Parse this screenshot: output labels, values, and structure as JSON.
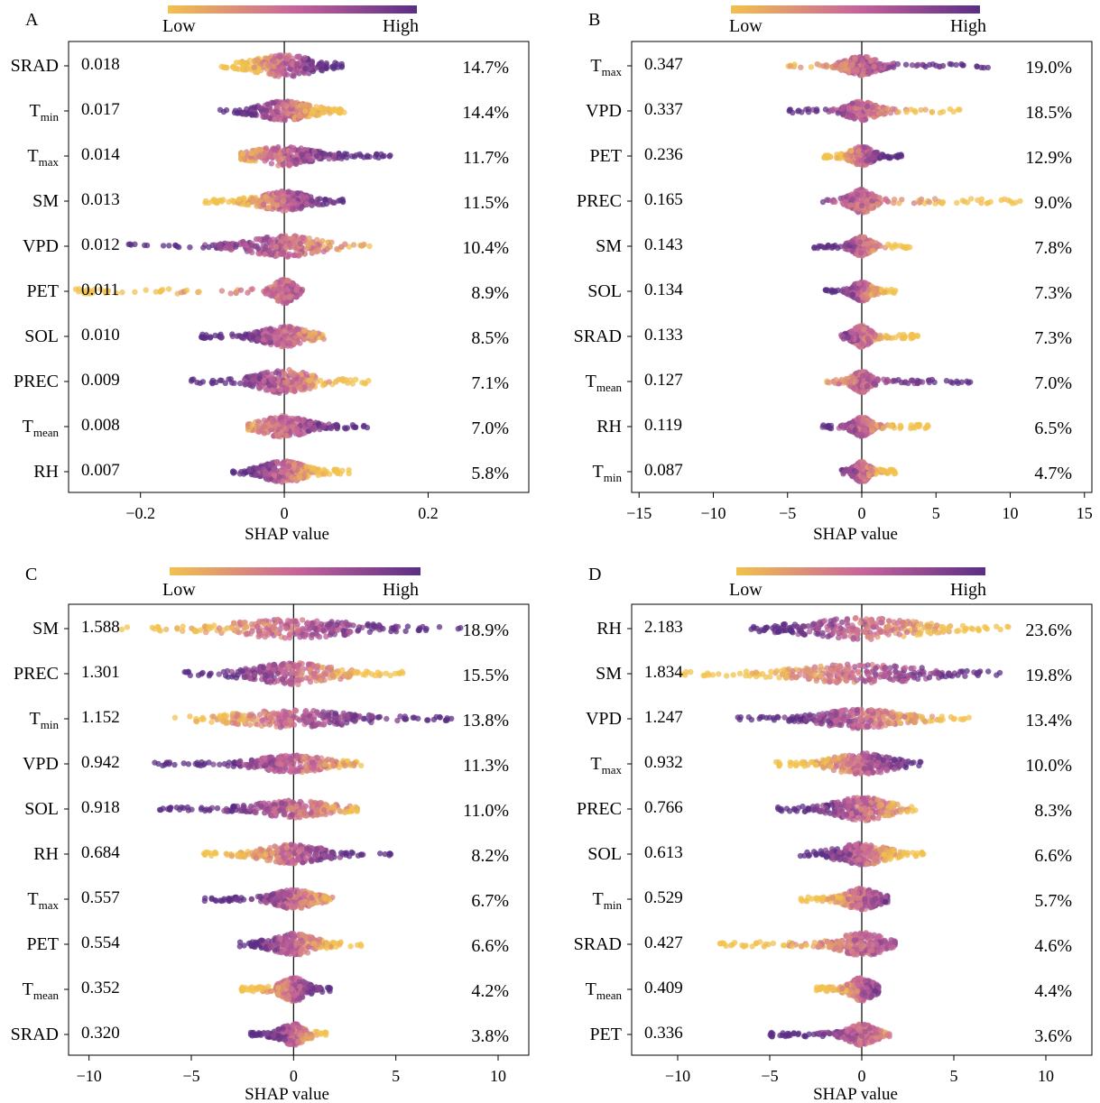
{
  "colors": {
    "low": "#f2c14e",
    "mid": "#c8659a",
    "high": "#5b2e86"
  },
  "chart_data": [
    {
      "panel_label": "A",
      "type": "scatter",
      "colorbar": {
        "low_label": "Low",
        "high_label": "High"
      },
      "xlabel": "SHAP value",
      "xlim": [
        -0.3,
        0.34
      ],
      "xticks": [
        -0.2,
        0,
        0.2
      ],
      "xtick_labels": [
        "−0.2",
        "0",
        "0.2"
      ],
      "features": [
        {
          "name": "SRAD",
          "sub": "",
          "importance": "0.018",
          "percent": "14.7%",
          "range": [
            -0.09,
            0.08
          ],
          "spread": 0.035,
          "width": 1.0,
          "trend": 1
        },
        {
          "name": "T",
          "sub": "min",
          "importance": "0.017",
          "percent": "14.4%",
          "range": [
            -0.09,
            0.085
          ],
          "spread": 0.03,
          "width": 0.9,
          "trend": -1
        },
        {
          "name": "T",
          "sub": "max",
          "importance": "0.014",
          "percent": "11.7%",
          "range": [
            -0.06,
            0.148
          ],
          "spread": 0.035,
          "width": 0.9,
          "trend": 1
        },
        {
          "name": "SM",
          "sub": "",
          "importance": "0.013",
          "percent": "11.5%",
          "range": [
            -0.11,
            0.085
          ],
          "spread": 0.03,
          "width": 0.9,
          "trend": 1
        },
        {
          "name": "VPD",
          "sub": "",
          "importance": "0.012",
          "percent": "10.4%",
          "range": [
            -0.22,
            0.12
          ],
          "spread": 0.04,
          "width": 1.0,
          "trend": -1
        },
        {
          "name": "PET",
          "sub": "",
          "importance": "0.011",
          "percent": "8.9%",
          "range": [
            -0.29,
            0.025
          ],
          "spread": 0.012,
          "width": 1.1,
          "trend": 1
        },
        {
          "name": "SOL",
          "sub": "",
          "importance": "0.010",
          "percent": "8.5%",
          "range": [
            -0.13,
            0.055
          ],
          "spread": 0.025,
          "width": 0.95,
          "trend": -1
        },
        {
          "name": "PREC",
          "sub": "",
          "importance": "0.009",
          "percent": "7.1%",
          "range": [
            -0.13,
            0.12
          ],
          "spread": 0.03,
          "width": 1.1,
          "trend": -1
        },
        {
          "name": "T",
          "sub": "mean",
          "importance": "0.008",
          "percent": "7.0%",
          "range": [
            -0.05,
            0.13
          ],
          "spread": 0.025,
          "width": 1.0,
          "trend": 1
        },
        {
          "name": "RH",
          "sub": "",
          "importance": "0.007",
          "percent": "5.8%",
          "range": [
            -0.075,
            0.09
          ],
          "spread": 0.025,
          "width": 1.0,
          "trend": -1
        }
      ]
    },
    {
      "panel_label": "B",
      "type": "scatter",
      "colorbar": {
        "low_label": "Low",
        "high_label": "High"
      },
      "xlabel": "SHAP value",
      "xlim": [
        -15.5,
        15.5
      ],
      "xticks": [
        -15,
        -10,
        -5,
        0,
        5,
        10,
        15
      ],
      "xtick_labels": [
        "−15",
        "−10",
        "−5",
        "0",
        "5",
        "10",
        "15"
      ],
      "features": [
        {
          "name": "T",
          "sub": "max",
          "importance": "0.347",
          "percent": "19.0%",
          "range": [
            -5.2,
            8.8
          ],
          "spread": 0.9,
          "width": 0.9,
          "trend": 1
        },
        {
          "name": "VPD",
          "sub": "",
          "importance": "0.337",
          "percent": "18.5%",
          "range": [
            -5.0,
            7.0
          ],
          "spread": 0.8,
          "width": 0.9,
          "trend": -1
        },
        {
          "name": "PET",
          "sub": "",
          "importance": "0.236",
          "percent": "12.9%",
          "range": [
            -2.6,
            2.7
          ],
          "spread": 0.6,
          "width": 0.9,
          "trend": 1
        },
        {
          "name": "PREC",
          "sub": "",
          "importance": "0.165",
          "percent": "9.0%",
          "range": [
            -2.8,
            10.8
          ],
          "spread": 0.6,
          "width": 1.1,
          "trend": -1
        },
        {
          "name": "SM",
          "sub": "",
          "importance": "0.143",
          "percent": "7.8%",
          "range": [
            -3.2,
            3.5
          ],
          "spread": 0.5,
          "width": 0.9,
          "trend": -1
        },
        {
          "name": "SOL",
          "sub": "",
          "importance": "0.134",
          "percent": "7.3%",
          "range": [
            -2.6,
            2.5
          ],
          "spread": 0.5,
          "width": 0.9,
          "trend": -1
        },
        {
          "name": "SRAD",
          "sub": "",
          "importance": "0.133",
          "percent": "7.3%",
          "range": [
            -1.4,
            3.8
          ],
          "spread": 0.5,
          "width": 1.0,
          "trend": -1
        },
        {
          "name": "T",
          "sub": "mean",
          "importance": "0.127",
          "percent": "7.0%",
          "range": [
            -2.6,
            7.5
          ],
          "spread": 0.5,
          "width": 1.0,
          "trend": 1
        },
        {
          "name": "RH",
          "sub": "",
          "importance": "0.119",
          "percent": "6.5%",
          "range": [
            -3.0,
            4.6
          ],
          "spread": 0.5,
          "width": 0.9,
          "trend": -1
        },
        {
          "name": "T",
          "sub": "min",
          "importance": "0.087",
          "percent": "4.7%",
          "range": [
            -1.4,
            2.5
          ],
          "spread": 0.4,
          "width": 1.0,
          "trend": -1
        }
      ]
    },
    {
      "panel_label": "C",
      "type": "scatter",
      "colorbar": {
        "low_label": "Low",
        "high_label": "High"
      },
      "xlabel": "SHAP value",
      "xlim": [
        -11,
        11.5
      ],
      "xticks": [
        -10,
        -5,
        0,
        5,
        10
      ],
      "xtick_labels": [
        "−10",
        "−5",
        "0",
        "5",
        "10"
      ],
      "features": [
        {
          "name": "SM",
          "sub": "",
          "importance": "1.588",
          "percent": "18.9%",
          "range": [
            -8.8,
            8.2
          ],
          "spread": 2.5,
          "width": 0.9,
          "trend": 1
        },
        {
          "name": "PREC",
          "sub": "",
          "importance": "1.301",
          "percent": "15.5%",
          "range": [
            -5.8,
            5.8
          ],
          "spread": 1.6,
          "width": 1.0,
          "trend": -1
        },
        {
          "name": "T",
          "sub": "min",
          "importance": "1.152",
          "percent": "13.8%",
          "range": [
            -5.8,
            7.9
          ],
          "spread": 2.5,
          "width": 0.8,
          "trend": 1
        },
        {
          "name": "VPD",
          "sub": "",
          "importance": "0.942",
          "percent": "11.3%",
          "range": [
            -6.8,
            3.3
          ],
          "spread": 1.4,
          "width": 0.8,
          "trend": -1
        },
        {
          "name": "SOL",
          "sub": "",
          "importance": "0.918",
          "percent": "11.0%",
          "range": [
            -6.8,
            3.1
          ],
          "spread": 1.5,
          "width": 0.8,
          "trend": -1
        },
        {
          "name": "RH",
          "sub": "",
          "importance": "0.684",
          "percent": "8.2%",
          "range": [
            -4.4,
            4.8
          ],
          "spread": 1.2,
          "width": 0.9,
          "trend": 1
        },
        {
          "name": "T",
          "sub": "max",
          "importance": "0.557",
          "percent": "6.7%",
          "range": [
            -4.4,
            1.9
          ],
          "spread": 0.8,
          "width": 0.9,
          "trend": -1
        },
        {
          "name": "PET",
          "sub": "",
          "importance": "0.554",
          "percent": "6.6%",
          "range": [
            -2.8,
            3.4
          ],
          "spread": 0.9,
          "width": 1.0,
          "trend": -1
        },
        {
          "name": "T",
          "sub": "mean",
          "importance": "0.352",
          "percent": "4.2%",
          "range": [
            -2.6,
            1.8
          ],
          "spread": 0.5,
          "width": 1.1,
          "trend": 1
        },
        {
          "name": "SRAD",
          "sub": "",
          "importance": "0.320",
          "percent": "3.8%",
          "range": [
            -2.2,
            1.9
          ],
          "spread": 0.5,
          "width": 1.0,
          "trend": -1
        }
      ]
    },
    {
      "panel_label": "D",
      "type": "scatter",
      "colorbar": {
        "low_label": "Low",
        "high_label": "High"
      },
      "xlabel": "SHAP value",
      "xlim": [
        -12.5,
        12.5
      ],
      "xticks": [
        -10,
        -5,
        0,
        5,
        10
      ],
      "xtick_labels": [
        "−10",
        "−5",
        "0",
        "5",
        "10"
      ],
      "features": [
        {
          "name": "RH",
          "sub": "",
          "importance": "2.183",
          "percent": "23.6%",
          "range": [
            -6.0,
            8.2
          ],
          "spread": 2.6,
          "width": 1.0,
          "trend": -1
        },
        {
          "name": "SM",
          "sub": "",
          "importance": "1.834",
          "percent": "19.8%",
          "range": [
            -9.8,
            7.5
          ],
          "spread": 2.8,
          "width": 0.9,
          "trend": 1
        },
        {
          "name": "VPD",
          "sub": "",
          "importance": "1.247",
          "percent": "13.4%",
          "range": [
            -6.8,
            6.0
          ],
          "spread": 1.8,
          "width": 0.9,
          "trend": -1
        },
        {
          "name": "T",
          "sub": "max",
          "importance": "0.932",
          "percent": "10.0%",
          "range": [
            -4.8,
            3.2
          ],
          "spread": 1.3,
          "width": 1.0,
          "trend": 1
        },
        {
          "name": "PREC",
          "sub": "",
          "importance": "0.766",
          "percent": "8.3%",
          "range": [
            -4.8,
            3.0
          ],
          "spread": 1.2,
          "width": 1.1,
          "trend": -1
        },
        {
          "name": "SOL",
          "sub": "",
          "importance": "0.613",
          "percent": "6.6%",
          "range": [
            -3.4,
            3.4
          ],
          "spread": 1.1,
          "width": 1.0,
          "trend": -1
        },
        {
          "name": "T",
          "sub": "min",
          "importance": "0.529",
          "percent": "5.7%",
          "range": [
            -3.4,
            1.4
          ],
          "spread": 0.7,
          "width": 1.0,
          "trend": 1
        },
        {
          "name": "SRAD",
          "sub": "",
          "importance": "0.427",
          "percent": "4.6%",
          "range": [
            -7.8,
            1.8
          ],
          "spread": 1.0,
          "width": 1.1,
          "trend": 1
        },
        {
          "name": "T",
          "sub": "mean",
          "importance": "0.409",
          "percent": "4.4%",
          "range": [
            -2.6,
            0.9
          ],
          "spread": 0.5,
          "width": 1.1,
          "trend": 1
        },
        {
          "name": "PET",
          "sub": "",
          "importance": "0.336",
          "percent": "3.6%",
          "range": [
            -5.0,
            1.5
          ],
          "spread": 0.6,
          "width": 1.0,
          "trend": -1
        }
      ]
    }
  ]
}
